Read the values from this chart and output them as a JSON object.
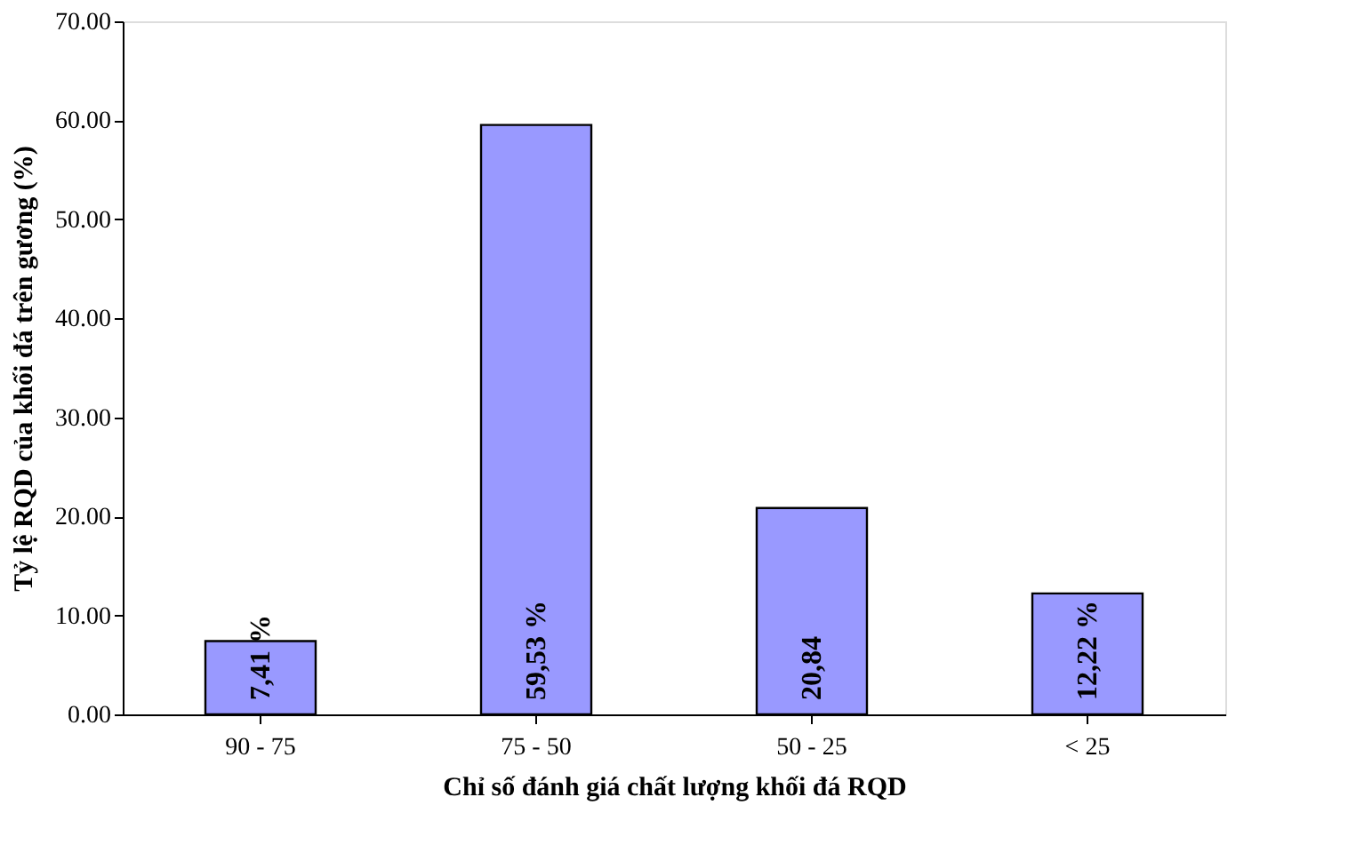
{
  "chart_data": {
    "type": "bar",
    "xlabel": "Chỉ số đánh giá chất lượng khối đá RQD",
    "ylabel": "Tỷ lệ RQD của khối đá trên gương (%)",
    "categories": [
      "90 - 75",
      "75 - 50",
      "50 - 25",
      "< 25"
    ],
    "values": [
      7.41,
      59.53,
      20.84,
      12.22
    ],
    "value_labels": [
      "7,41 %",
      "59,53 %",
      "20,84",
      "12,22 %"
    ],
    "color": "#9999ff",
    "ylim": [
      0,
      70
    ],
    "yticks": [
      {
        "value": 0,
        "label": "0.00"
      },
      {
        "value": 10,
        "label": "10.00"
      },
      {
        "value": 20,
        "label": "20.00"
      },
      {
        "value": 30,
        "label": "30.00"
      },
      {
        "value": 40,
        "label": "40.00"
      },
      {
        "value": 50,
        "label": "50.00"
      },
      {
        "value": 60,
        "label": "60.00"
      },
      {
        "value": 70,
        "label": "70.00"
      }
    ],
    "grid": false
  }
}
